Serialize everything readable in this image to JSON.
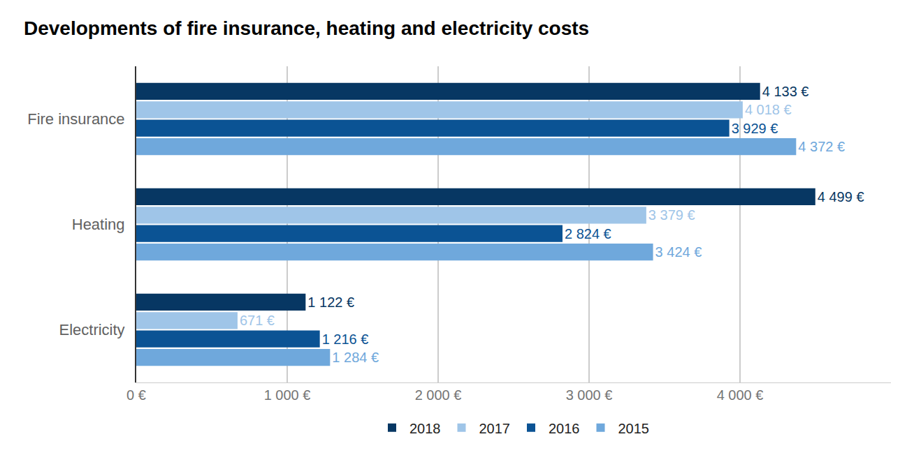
{
  "chart_data": {
    "type": "bar",
    "orientation": "horizontal",
    "title": "Developments of fire insurance, heating and electricity costs",
    "categories": [
      "Fire insurance",
      "Heating",
      "Electricity"
    ],
    "series": [
      {
        "name": "2018",
        "color": "#073763",
        "values": [
          4133,
          4499,
          1122
        ],
        "value_labels": [
          "4 133 €",
          "4 499 €",
          "1 122 €"
        ]
      },
      {
        "name": "2017",
        "color": "#9fc5e8",
        "values": [
          4018,
          3379,
          671
        ],
        "value_labels": [
          "4 018 €",
          "3 379 €",
          "671 €"
        ]
      },
      {
        "name": "2016",
        "color": "#0b5394",
        "values": [
          3929,
          2824,
          1216
        ],
        "value_labels": [
          "3 929 €",
          "2 824 €",
          "1 216 €"
        ]
      },
      {
        "name": "2015",
        "color": "#6fa8dc",
        "values": [
          4372,
          3424,
          1284
        ],
        "value_labels": [
          "4 372 €",
          "3 424 €",
          "1 284 €"
        ]
      }
    ],
    "xlim": [
      0,
      5000
    ],
    "xticks": [
      {
        "value": 0,
        "label": "0 €"
      },
      {
        "value": 1000,
        "label": "1 000 €"
      },
      {
        "value": 2000,
        "label": "2 000 €"
      },
      {
        "value": 3000,
        "label": "3 000 €"
      },
      {
        "value": 4000,
        "label": "4 000 €"
      }
    ],
    "grid": true,
    "legend": "bottom",
    "data_labels": true
  }
}
